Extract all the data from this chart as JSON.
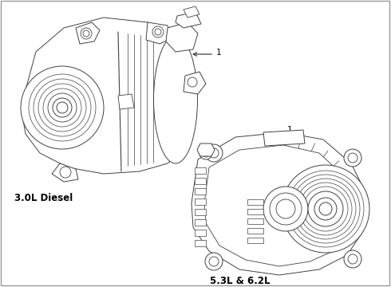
{
  "background_color": "#ffffff",
  "line_color": "#404040",
  "label1_text": "3.0L Diesel",
  "label2_text": "5.3L & 6.2L",
  "callout1_text": "1",
  "callout2_text": "1",
  "fig_width": 4.9,
  "fig_height": 3.6,
  "dpi": 100,
  "border_color": "#999999"
}
